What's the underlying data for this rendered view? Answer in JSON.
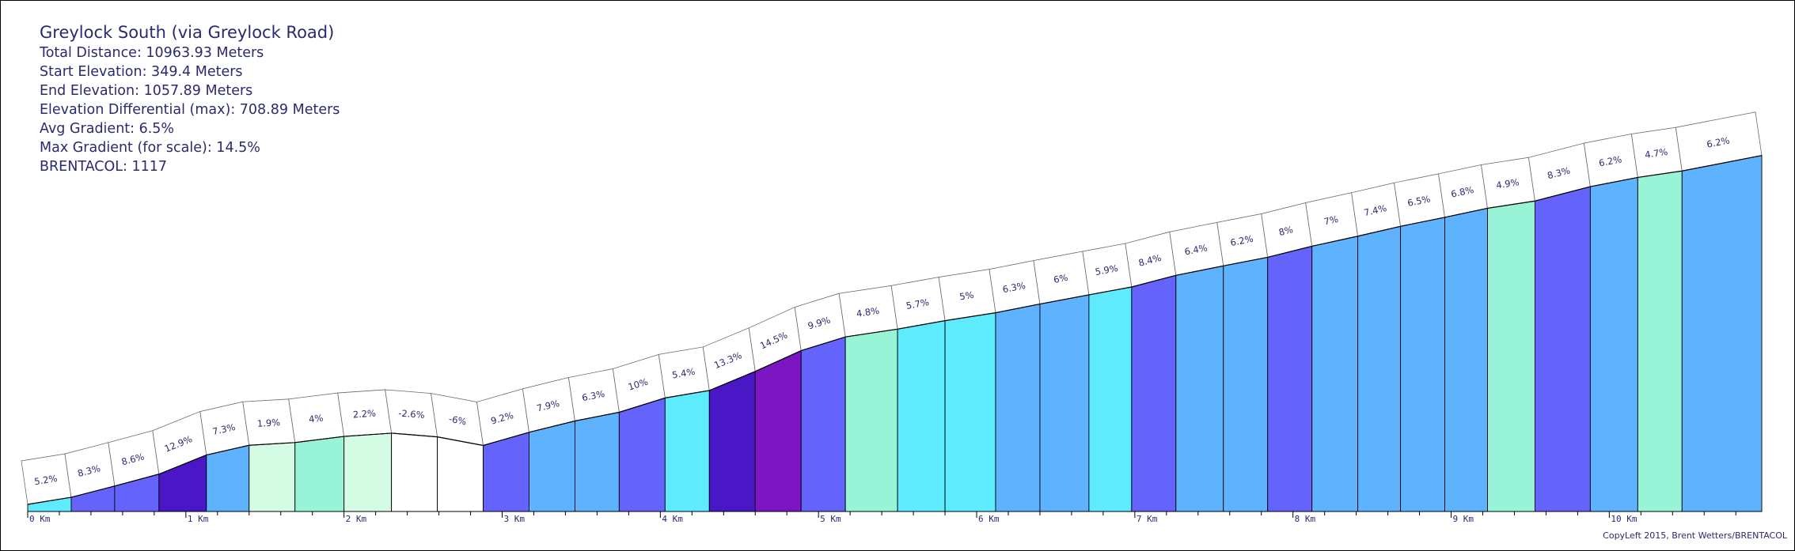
{
  "info": {
    "title": "Greylock South (via Greylock Road)",
    "total_distance": "Total Distance: 10963.93 Meters",
    "start_elevation": "Start Elevation: 349.4 Meters",
    "end_elevation": "End Elevation: 1057.89 Meters",
    "elevation_differential": "Elevation Differential (max): 708.89 Meters",
    "avg_gradient": "Avg Gradient: 6.5%",
    "max_gradient": "Max Gradient (for scale): 14.5%",
    "brentacol": "BRENTACOL: 1117"
  },
  "credit": "CopyLeft 2015, Brent Wetters/BRENTACOL",
  "gradient_colors": {
    "descent": "#ffffff",
    "flat": "#d4fbe4",
    "easy": "#98f3d7",
    "moderate": "#5eebfd",
    "steep": "#5fb2fe",
    "hard": "#6464fc",
    "very_hard": "#4a17c6",
    "extreme": "#7c16c3"
  },
  "chart_data": {
    "type": "area",
    "x_unit": "km",
    "x_ticks": [
      "0 Km",
      "1 Km",
      "2 Km",
      "3 Km",
      "4 Km",
      "5 Km",
      "6 Km",
      "7 Km",
      "8 Km",
      "9 Km",
      "10 Km"
    ],
    "xlim": [
      0,
      10.964
    ],
    "ylim": [
      349.4,
      1057.89
    ],
    "segments": [
      {
        "label": "5.2%",
        "gradient": 5.2,
        "start_km": 0.0,
        "end_km": 0.275
      },
      {
        "label": "8.3%",
        "gradient": 8.3,
        "start_km": 0.275,
        "end_km": 0.55
      },
      {
        "label": "8.6%",
        "gradient": 8.6,
        "start_km": 0.55,
        "end_km": 0.83
      },
      {
        "label": "12.9%",
        "gradient": 12.9,
        "start_km": 0.83,
        "end_km": 1.13
      },
      {
        "label": "7.3%",
        "gradient": 7.3,
        "start_km": 1.13,
        "end_km": 1.4
      },
      {
        "label": "1.9%",
        "gradient": 1.9,
        "start_km": 1.4,
        "end_km": 1.69
      },
      {
        "label": "4%",
        "gradient": 4,
        "start_km": 1.69,
        "end_km": 2.0
      },
      {
        "label": "2.2%",
        "gradient": 2.2,
        "start_km": 2.0,
        "end_km": 2.3
      },
      {
        "label": "-2.6%",
        "gradient": -2.6,
        "start_km": 2.3,
        "end_km": 2.59
      },
      {
        "label": "-6%",
        "gradient": -6,
        "start_km": 2.59,
        "end_km": 2.88
      },
      {
        "label": "9.2%",
        "gradient": 9.2,
        "start_km": 2.88,
        "end_km": 3.17
      },
      {
        "label": "7.9%",
        "gradient": 7.9,
        "start_km": 3.17,
        "end_km": 3.46
      },
      {
        "label": "6.3%",
        "gradient": 6.3,
        "start_km": 3.46,
        "end_km": 3.74
      },
      {
        "label": "10%",
        "gradient": 10,
        "start_km": 3.74,
        "end_km": 4.03
      },
      {
        "label": "5.4%",
        "gradient": 5.4,
        "start_km": 4.03,
        "end_km": 4.31
      },
      {
        "label": "13.3%",
        "gradient": 13.3,
        "start_km": 4.31,
        "end_km": 4.6
      },
      {
        "label": "14.5%",
        "gradient": 14.5,
        "start_km": 4.6,
        "end_km": 4.89
      },
      {
        "label": "9.9%",
        "gradient": 9.9,
        "start_km": 4.89,
        "end_km": 5.17
      },
      {
        "label": "4.8%",
        "gradient": 4.8,
        "start_km": 5.17,
        "end_km": 5.5
      },
      {
        "label": "5.7%",
        "gradient": 5.7,
        "start_km": 5.5,
        "end_km": 5.8
      },
      {
        "label": "5%",
        "gradient": 5,
        "start_km": 5.8,
        "end_km": 6.12
      },
      {
        "label": "6.3%",
        "gradient": 6.3,
        "start_km": 6.12,
        "end_km": 6.4
      },
      {
        "label": "6%",
        "gradient": 6,
        "start_km": 6.4,
        "end_km": 6.71
      },
      {
        "label": "5.9%",
        "gradient": 5.9,
        "start_km": 6.71,
        "end_km": 6.98
      },
      {
        "label": "8.4%",
        "gradient": 8.4,
        "start_km": 6.98,
        "end_km": 7.26
      },
      {
        "label": "6.4%",
        "gradient": 6.4,
        "start_km": 7.26,
        "end_km": 7.56
      },
      {
        "label": "6.2%",
        "gradient": 6.2,
        "start_km": 7.56,
        "end_km": 7.84
      },
      {
        "label": "8%",
        "gradient": 8,
        "start_km": 7.84,
        "end_km": 8.12
      },
      {
        "label": "7%",
        "gradient": 7,
        "start_km": 8.12,
        "end_km": 8.41
      },
      {
        "label": "7.4%",
        "gradient": 7.4,
        "start_km": 8.41,
        "end_km": 8.68
      },
      {
        "label": "6.5%",
        "gradient": 6.5,
        "start_km": 8.68,
        "end_km": 8.96
      },
      {
        "label": "6.8%",
        "gradient": 6.8,
        "start_km": 8.96,
        "end_km": 9.23
      },
      {
        "label": "4.9%",
        "gradient": 4.9,
        "start_km": 9.23,
        "end_km": 9.53
      },
      {
        "label": "8.3%",
        "gradient": 8.3,
        "start_km": 9.53,
        "end_km": 9.88
      },
      {
        "label": "6.2%",
        "gradient": 6.2,
        "start_km": 9.88,
        "end_km": 10.18
      },
      {
        "label": "4.7%",
        "gradient": 4.7,
        "start_km": 10.18,
        "end_km": 10.46
      },
      {
        "label": "6.2%",
        "gradient": 6.2,
        "start_km": 10.46,
        "end_km": 10.964
      }
    ]
  }
}
